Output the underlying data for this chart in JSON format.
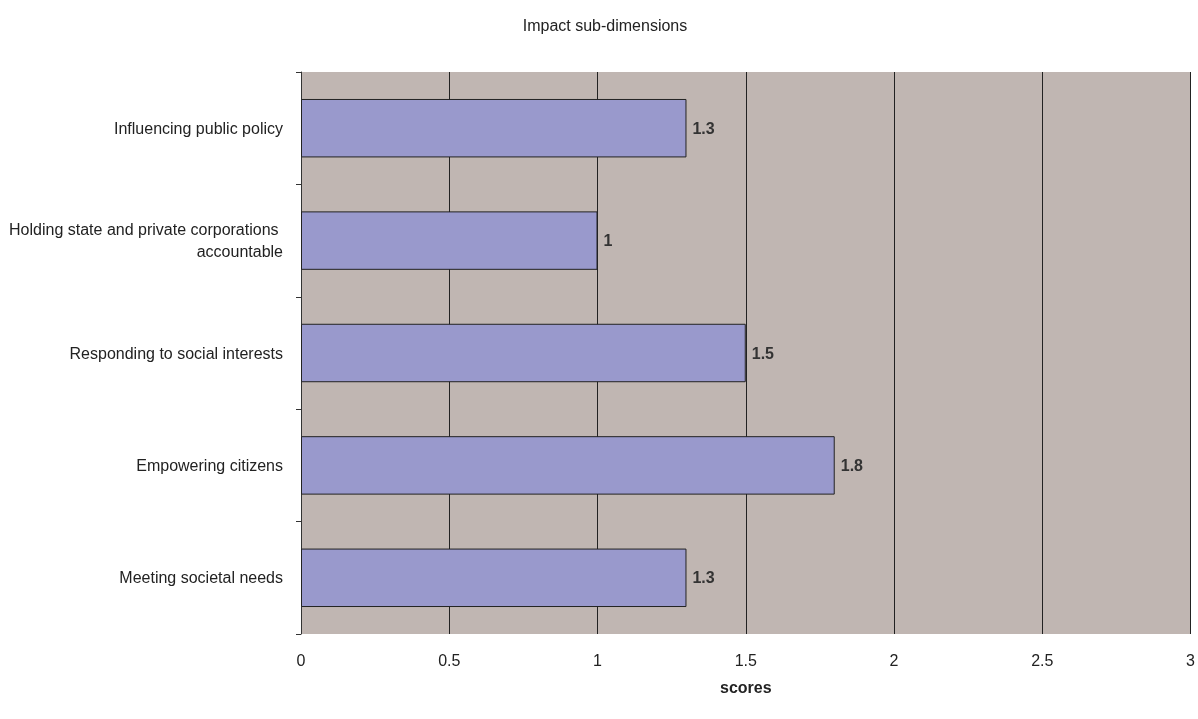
{
  "chart_data": {
    "type": "bar",
    "orientation": "horizontal",
    "title": "Impact sub-dimensions",
    "xlabel": "scores",
    "categories": [
      "Influencing public policy",
      "Holding state and private corporations accountable",
      "Responding to social interests",
      "Empowering citizens",
      "Meeting societal needs"
    ],
    "values": [
      1.3,
      1,
      1.5,
      1.8,
      1.3
    ],
    "color": "#9999cc",
    "xlim": [
      0,
      3
    ],
    "xticks": [
      0,
      0.5,
      1,
      1.5,
      2,
      2.5,
      3
    ],
    "grid": "x",
    "data_labels": true
  }
}
